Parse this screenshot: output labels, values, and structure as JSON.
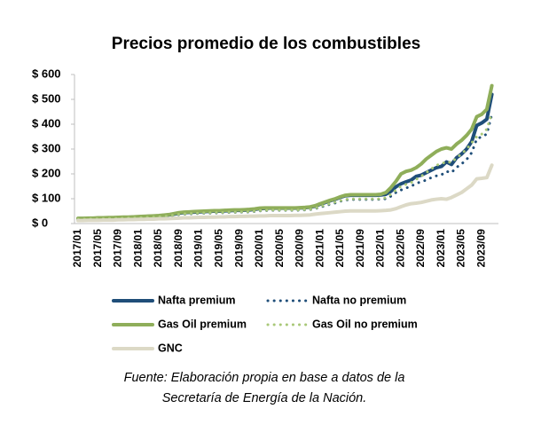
{
  "chart_data": {
    "type": "line",
    "title": "Precios promedio de los combustibles",
    "categories": [
      "2017/01",
      null,
      null,
      null,
      "2017/05",
      null,
      null,
      null,
      "2017/09",
      null,
      null,
      null,
      "2018/01",
      null,
      null,
      null,
      "2018/05",
      null,
      null,
      null,
      "2018/09",
      null,
      null,
      null,
      "2019/01",
      null,
      null,
      null,
      "2019/05",
      null,
      null,
      null,
      "2019/09",
      null,
      null,
      null,
      "2020/01",
      null,
      null,
      null,
      "2020/05",
      null,
      null,
      null,
      "2020/09",
      null,
      null,
      null,
      "2021/01",
      null,
      null,
      null,
      "2021/05",
      null,
      null,
      null,
      "2021/09",
      null,
      null,
      null,
      "2022/01",
      null,
      null,
      null,
      "2022/05",
      null,
      null,
      null,
      "2022/09",
      null,
      null,
      null,
      "2023/01",
      null,
      null,
      null,
      "2023/05",
      null,
      null,
      null,
      "2023/09",
      null,
      null
    ],
    "series": [
      {
        "name": "Nafta premium",
        "color": "#1f4e79",
        "style": "solid",
        "values": [
          20,
          20,
          21,
          21,
          22,
          22,
          23,
          23,
          24,
          25,
          25,
          26,
          27,
          28,
          29,
          30,
          31,
          33,
          35,
          38,
          42,
          44,
          45,
          46,
          47,
          48,
          49,
          50,
          50,
          51,
          52,
          53,
          53,
          54,
          55,
          57,
          60,
          61,
          62,
          62,
          62,
          62,
          62,
          62,
          63,
          64,
          66,
          70,
          78,
          85,
          92,
          98,
          106,
          112,
          114,
          114,
          114,
          114,
          114,
          114,
          115,
          118,
          130,
          148,
          160,
          168,
          175,
          190,
          195,
          205,
          215,
          225,
          230,
          248,
          238,
          265,
          280,
          300,
          330,
          395,
          405,
          420,
          520
        ]
      },
      {
        "name": "Nafta no premium",
        "color": "#1f4e79",
        "style": "dotted",
        "values": [
          17,
          17,
          18,
          18,
          19,
          19,
          20,
          20,
          21,
          21,
          22,
          22,
          23,
          24,
          25,
          26,
          27,
          28,
          30,
          33,
          36,
          38,
          39,
          40,
          41,
          42,
          42,
          43,
          43,
          44,
          45,
          45,
          46,
          46,
          47,
          49,
          51,
          52,
          53,
          53,
          53,
          53,
          53,
          53,
          54,
          55,
          56,
          60,
          66,
          72,
          78,
          83,
          90,
          95,
          97,
          97,
          97,
          97,
          97,
          97,
          98,
          100,
          110,
          125,
          135,
          143,
          150,
          162,
          168,
          175,
          185,
          192,
          196,
          210,
          205,
          226,
          240,
          258,
          285,
          340,
          350,
          360,
          440
        ]
      },
      {
        "name": "Gas Oil premium",
        "color": "#8fae5a",
        "style": "solid",
        "values": [
          21,
          21,
          22,
          22,
          23,
          23,
          24,
          24,
          25,
          26,
          26,
          27,
          28,
          29,
          30,
          31,
          32,
          34,
          36,
          40,
          44,
          46,
          47,
          48,
          49,
          50,
          51,
          52,
          52,
          53,
          54,
          55,
          55,
          56,
          57,
          59,
          62,
          63,
          63,
          63,
          63,
          63,
          63,
          63,
          64,
          65,
          67,
          72,
          80,
          87,
          94,
          100,
          108,
          114,
          116,
          116,
          116,
          116,
          116,
          116,
          118,
          125,
          145,
          170,
          200,
          210,
          215,
          225,
          240,
          260,
          275,
          290,
          300,
          305,
          300,
          320,
          335,
          355,
          380,
          430,
          440,
          460,
          555
        ]
      },
      {
        "name": "Gas Oil no premium",
        "color": "#a9c878",
        "style": "dotted",
        "values": [
          18,
          18,
          19,
          19,
          20,
          20,
          21,
          21,
          22,
          22,
          23,
          23,
          24,
          25,
          26,
          27,
          28,
          29,
          31,
          34,
          37,
          39,
          40,
          41,
          42,
          43,
          43,
          44,
          44,
          45,
          46,
          46,
          47,
          47,
          48,
          50,
          52,
          53,
          54,
          54,
          54,
          54,
          54,
          54,
          55,
          56,
          57,
          61,
          68,
          74,
          80,
          86,
          92,
          97,
          99,
          99,
          99,
          99,
          99,
          99,
          100,
          104,
          118,
          135,
          150,
          158,
          165,
          178,
          190,
          205,
          220,
          235,
          240,
          250,
          245,
          265,
          280,
          300,
          325,
          350,
          360,
          380,
          445
        ]
      },
      {
        "name": "GNC",
        "color": "#dcd9c6",
        "style": "solid",
        "values": [
          12,
          12,
          13,
          13,
          13,
          14,
          14,
          14,
          15,
          15,
          16,
          16,
          17,
          17,
          18,
          18,
          19,
          19,
          20,
          21,
          22,
          23,
          23,
          24,
          25,
          25,
          26,
          26,
          27,
          27,
          28,
          28,
          29,
          29,
          30,
          30,
          31,
          31,
          32,
          32,
          32,
          32,
          32,
          33,
          33,
          34,
          35,
          38,
          40,
          42,
          44,
          46,
          48,
          50,
          51,
          51,
          51,
          51,
          51,
          51,
          52,
          53,
          55,
          60,
          68,
          75,
          80,
          82,
          85,
          90,
          95,
          98,
          100,
          98,
          105,
          115,
          125,
          140,
          155,
          180,
          182,
          185,
          235
        ]
      }
    ],
    "ylim": [
      0,
      600
    ],
    "yticks": [
      {
        "value": 0,
        "label": "$ 0"
      },
      {
        "value": 100,
        "label": "$ 100"
      },
      {
        "value": 200,
        "label": "$ 200"
      },
      {
        "value": 300,
        "label": "$ 300"
      },
      {
        "value": 400,
        "label": "$ 400"
      },
      {
        "value": 500,
        "label": "$ 500"
      },
      {
        "value": 600,
        "label": "$ 600"
      }
    ],
    "grid": false,
    "annotations": [
      "Fuente: Elaboración propia en base a datos de la",
      "Secretaría de Energía de la Nación."
    ]
  }
}
